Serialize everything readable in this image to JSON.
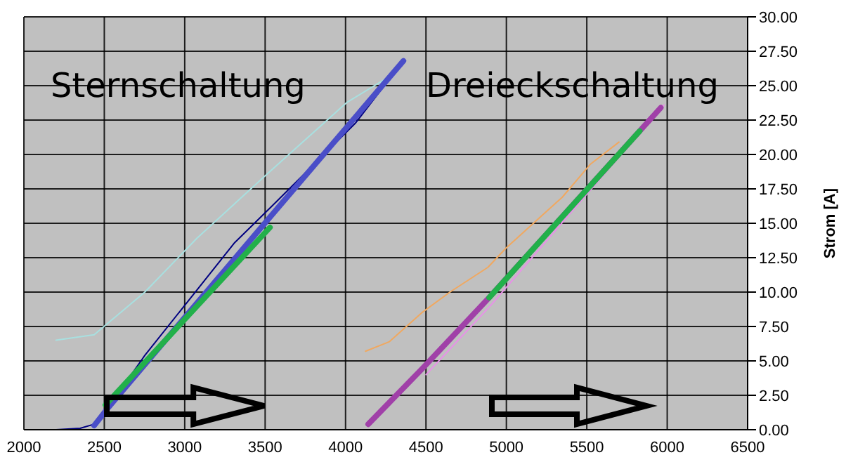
{
  "chart_data": {
    "type": "line",
    "ylabel": "Strom [A]",
    "annotations": [
      "Sternschaltung",
      "Dreieckschaltung"
    ],
    "xlim": [
      2000,
      6500
    ],
    "xticks": [
      2000,
      2500,
      3000,
      3500,
      4000,
      4500,
      5000,
      5500,
      6000,
      6500
    ],
    "ylim": [
      0,
      30
    ],
    "yticks": [
      {
        "value": 0,
        "label": "0.00"
      },
      {
        "value": 2.5,
        "label": "2.50"
      },
      {
        "value": 5,
        "label": "5.00"
      },
      {
        "value": 7.5,
        "label": "7.50"
      },
      {
        "value": 10,
        "label": "10.00"
      },
      {
        "value": 12.5,
        "label": "12.50"
      },
      {
        "value": 15,
        "label": "15.00"
      },
      {
        "value": 17.5,
        "label": "17.50"
      },
      {
        "value": 20,
        "label": "20.00"
      },
      {
        "value": 22.5,
        "label": "22.50"
      },
      {
        "value": 25,
        "label": "25.00"
      },
      {
        "value": 27.5,
        "label": "27.50"
      },
      {
        "value": 30,
        "label": "30.00"
      }
    ],
    "grid": true,
    "marker": "none",
    "line_style": "solid",
    "series": [
      {
        "color": "#a8e0e0",
        "x": [
          2200,
          2437,
          2752,
          3075,
          3486,
          4010,
          4250
        ],
        "values": [
          6.5,
          6.9,
          10.0,
          13.9,
          18.3,
          23.8,
          25.5
        ]
      },
      {
        "color": "#000080",
        "x": [
          2200,
          2350,
          2437,
          2524,
          2752,
          3311,
          3538,
          4063,
          4360
        ],
        "values": [
          0,
          0.1,
          0.4,
          1.6,
          5.4,
          13.6,
          16.2,
          22.3,
          26.8
        ]
      },
      {
        "color": "#f0a860",
        "x": [
          4124,
          4273,
          4474,
          4649,
          4885,
          4998,
          5348,
          5523,
          5700
        ],
        "values": [
          5.7,
          6.4,
          8.5,
          10.0,
          11.8,
          13.2,
          16.9,
          19.3,
          20.9
        ]
      },
      {
        "color": "#e890e8",
        "x": [
          4500,
          4900,
          5980
        ],
        "values": [
          4.0,
          9.0,
          23.6
        ]
      },
      {
        "color": "#4a4ec8",
        "x": [
          2437,
          2524,
          3512,
          4360
        ],
        "values": [
          0.3,
          1.6,
          15.2,
          26.8
        ]
      },
      {
        "color": "#a040a8",
        "x": [
          4141,
          4474,
          4885,
          5960
        ],
        "values": [
          0.4,
          4.4,
          9.5,
          23.4
        ]
      },
      {
        "color": "#22b04a",
        "x": [
          2507,
          3530
        ],
        "values": [
          1.8,
          14.7
        ]
      },
      {
        "color": "#22b04a",
        "x": [
          4893,
          5829
        ],
        "values": [
          9.6,
          21.7
        ]
      }
    ]
  }
}
